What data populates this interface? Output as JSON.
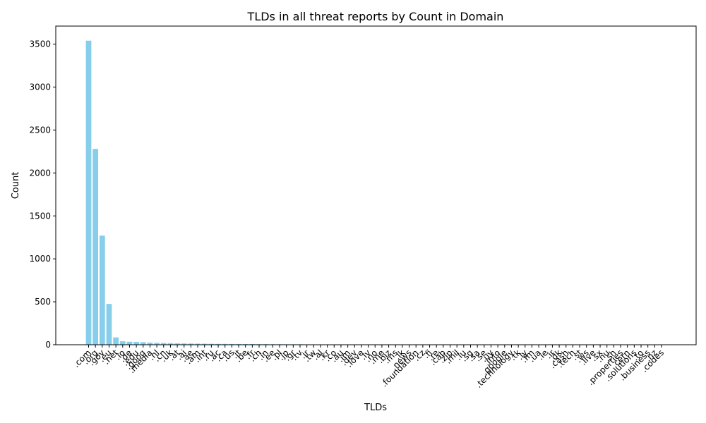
{
  "chart_data": {
    "type": "bar",
    "title": "TLDs in all threat reports by Count in Domain",
    "xlabel": "TLDs",
    "ylabel": "Count",
    "ylim": [
      0,
      3710
    ],
    "yticks": [
      0,
      500,
      1000,
      1500,
      2000,
      2500,
      3000,
      3500
    ],
    "bar_color": "#87ceeb",
    "categories": [
      ".com",
      ".org",
      ".gov",
      ".eu",
      ".net",
      ".io",
      ".de",
      ".edu",
      ".goog",
      ".media",
      ".nl",
      ".cn",
      ".uk",
      ".at",
      ".ai",
      ".ae",
      ".am",
      ".int",
      ".ru",
      ".ac",
      ".ca",
      ".us",
      ".it",
      ".be",
      ".fr",
      ".ch",
      ".in",
      ".ee",
      ".pl",
      ".jp",
      ".gr",
      ".tv",
      ".ir",
      ".tw",
      ".al",
      ".kr",
      ".co",
      ".au",
      ".im",
      ".dev",
      ".love",
      ".lv",
      ".no",
      ".me",
      ".biz",
      ".ms",
      ".lk",
      ".news",
      ".foundation",
      ".cz",
      ".fi",
      ".re",
      ".cab",
      ".zip",
      ".mil",
      ".lu",
      ".sg",
      ".sa",
      ".se",
      ".uy",
      ".info",
      ".google",
      ".technology",
      ".tk",
      ".ly",
      ".fm",
      ".ua",
      ".ie",
      ".ir",
      ".dk",
      ".cash",
      ".tech",
      ".st",
      ".ws",
      ".live",
      ".sx",
      ".nu",
      ".sh",
      ".properties",
      ".cern",
      ".solutions",
      ".to",
      ".business",
      ".nz",
      ".codes"
    ],
    "values": [
      3540,
      2280,
      1270,
      475,
      85,
      40,
      35,
      33,
      30,
      25,
      22,
      20,
      18,
      16,
      15,
      14,
      13,
      12,
      11,
      10,
      10,
      9,
      9,
      8,
      8,
      7,
      7,
      6,
      6,
      5,
      5,
      5,
      4,
      4,
      4,
      4,
      3,
      3,
      3,
      3,
      3,
      3,
      2,
      2,
      2,
      2,
      2,
      2,
      2,
      2,
      2,
      2,
      2,
      2,
      1,
      1,
      1,
      1,
      1,
      1,
      1,
      1,
      1,
      1,
      1,
      1,
      1,
      1,
      1,
      1,
      1,
      1,
      1,
      1,
      1,
      1,
      1,
      1,
      1,
      1,
      1,
      1,
      1,
      1,
      1
    ],
    "shown_tick_labels": [
      ".com",
      ".org",
      ".gov",
      ".eu",
      ".net",
      ".io",
      ".de",
      ".edu",
      ".goog",
      ".media",
      ".nl",
      ".cn",
      ".uk",
      ".at",
      ".ai",
      ".ae",
      ".am",
      ".int",
      ".ru",
      ".ac",
      ".ca",
      ".us",
      ".it",
      ".be",
      ".fr",
      ".ch",
      ".in",
      ".ee",
      ".pl",
      ".jp",
      ".gr",
      ".tv",
      ".ir",
      ".tw",
      ".al",
      ".kr",
      ".co",
      ".au",
      ".im",
      ".dev",
      ".love",
      ".lv",
      ".no",
      ".me",
      ".biz",
      ".ms",
      ".lk",
      ".news",
      ".foundation",
      ".cz",
      ".fi",
      ".re",
      ".cab",
      ".zip",
      ".mil",
      ".lu",
      ".sg",
      ".sa",
      ".se",
      ".uy",
      ".info",
      ".google",
      ".technology",
      ".tk",
      ".ly",
      ".fm",
      ".ua",
      ".ie",
      ".ir",
      ".dk",
      ".cash",
      ".tech",
      ".st",
      ".ws",
      ".live",
      ".sx",
      ".nu",
      ".sh",
      ".properties",
      ".cern",
      ".solutions",
      ".to",
      ".business",
      ".nz",
      ".codes"
    ]
  }
}
